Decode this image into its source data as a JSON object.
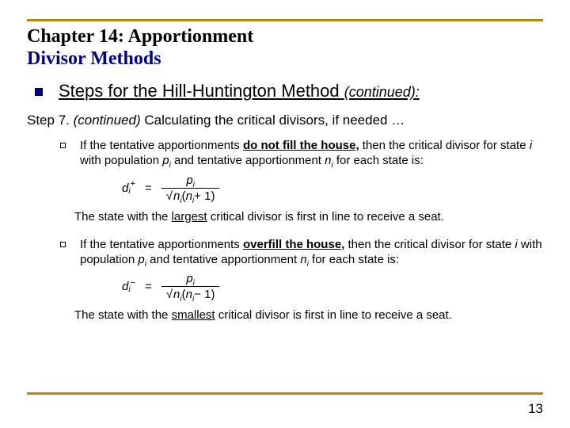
{
  "colors": {
    "rule": "#b8860b",
    "title2": "#000080",
    "text": "#000000"
  },
  "title": {
    "line1": "Chapter 14:  Apportionment",
    "line2": "Divisor Methods"
  },
  "subheading": {
    "text": "Steps for the Hill-Huntington Method ",
    "cont": "(continued):"
  },
  "step": {
    "label": "Step 7. ",
    "cont": "(continued) ",
    "rest": "Calculating the critical divisors, if needed …"
  },
  "case1": {
    "lead": "If the tentative apportionments ",
    "emph": "do not fill the house,",
    "mid": " then the critical divisor for state ",
    "ivar": "i",
    "mid2": " with population ",
    "pvar": "p",
    "mid3": " and tentative apportionment ",
    "nvar": "n",
    "tail": " for each state is:",
    "formula": {
      "d": "d",
      "sub": "i",
      "sup": " +",
      "eq": "=",
      "num_p": "p",
      "num_sub": "i",
      "den_n1": "n",
      "den_sub1": "i",
      "den_lp": " (",
      "den_n2": "n",
      "den_sub2": "i",
      "den_op": " + 1)"
    },
    "note_a": "The state with the ",
    "note_emph": "largest",
    "note_b": " critical divisor is first in line to receive a seat."
  },
  "case2": {
    "lead": "If the tentative apportionments ",
    "emph": "overfill the house,",
    "mid": " then the critical divisor for state ",
    "ivar": "i",
    "mid2": " with population ",
    "pvar": "p",
    "mid3": " and tentative apportionment ",
    "nvar": "n",
    "tail": " for each state is:",
    "formula": {
      "d": "d",
      "sub": "i",
      "sup": " −",
      "eq": "=",
      "num_p": "p",
      "num_sub": "i",
      "den_n1": "n",
      "den_sub1": "i",
      "den_lp": " (",
      "den_n2": "n",
      "den_sub2": "i",
      "den_op": " − 1)"
    },
    "note_a": "The state with the ",
    "note_emph": "smallest",
    "note_b": " critical divisor is first in line to receive a seat."
  },
  "page": "13"
}
